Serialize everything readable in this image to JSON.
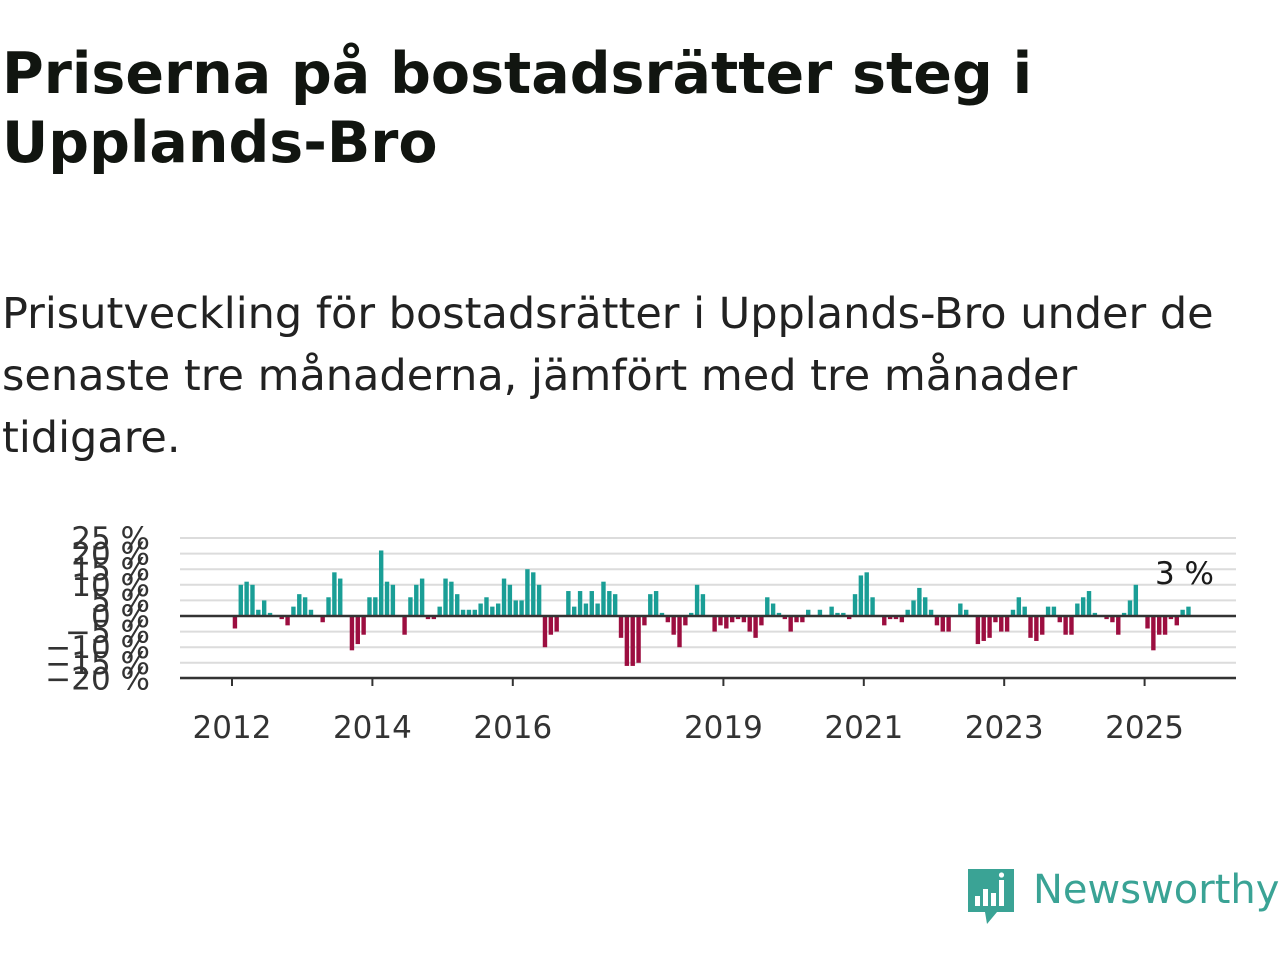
{
  "title": "Priserna på bostadsrätter steg i Upplands-Bro",
  "subtitle": "Prisutveckling för bostadsrätter i Upplands-Bro under de senaste tre månaderna, jämfört med tre månader tidigare.",
  "logo_text": "Newsworthy",
  "colors": {
    "positive": "#1a9e96",
    "negative": "#9c0e40",
    "brand": "#3aa395",
    "grid": "#dcdcdc",
    "axis": "#333333"
  },
  "chart_data": {
    "type": "bar",
    "ylabel": "",
    "xlabel": "",
    "ylim": [
      -20,
      25
    ],
    "y_ticks": [
      -20,
      -15,
      -10,
      -5,
      0,
      5,
      10,
      15,
      20,
      25
    ],
    "y_tick_labels": [
      "−20 %",
      "−15 %",
      "−10 %",
      "−5 %",
      "0 %",
      "5 %",
      "10 %",
      "15 %",
      "20 %",
      "25 %"
    ],
    "x_tick_labels": [
      {
        "label": "2012",
        "year": 2012
      },
      {
        "label": "2014",
        "year": 2014
      },
      {
        "label": "2016",
        "year": 2016
      },
      {
        "label": "2019",
        "year": 2019
      },
      {
        "label": "2021",
        "year": 2021
      },
      {
        "label": "2023",
        "year": 2023
      },
      {
        "label": "2025",
        "year": 2025
      }
    ],
    "start": "2012-01",
    "grid": true,
    "annotation": "3 %",
    "series": [
      {
        "values": [
          -4,
          10,
          11,
          10,
          2,
          5,
          1,
          0,
          -1,
          -3,
          3,
          7,
          6,
          2,
          0,
          -2,
          6,
          14,
          12,
          0,
          -11,
          -9,
          -6,
          6,
          6,
          21,
          11,
          10,
          0,
          -6,
          6,
          10,
          12,
          -1,
          -1,
          3,
          12,
          11,
          7,
          2,
          2,
          2,
          4,
          6,
          3,
          4,
          12,
          10,
          5,
          5,
          15,
          14,
          10,
          -10,
          -6,
          -5,
          0,
          8,
          3,
          8,
          4,
          8,
          4,
          11,
          8,
          7,
          -7,
          -16,
          -16,
          -15,
          -3,
          7,
          8,
          1,
          -2,
          -6,
          -10,
          -3,
          1,
          10,
          7,
          0,
          -5,
          -3,
          -4,
          -2,
          -1,
          -2,
          -5,
          -7,
          -3,
          6,
          4,
          1,
          -1,
          -5,
          -2,
          -2,
          2,
          0,
          2,
          0,
          3,
          1,
          1,
          -1,
          7,
          13,
          14,
          6,
          0,
          -3,
          -1,
          -1,
          -2,
          2,
          5,
          9,
          6,
          2,
          -3,
          -5,
          -5,
          0,
          4,
          2,
          0,
          -9,
          -8,
          -7,
          -2,
          -5,
          -5,
          2,
          6,
          3,
          -7,
          -8,
          -6,
          3,
          3,
          -2,
          -6,
          -6,
          4,
          6,
          8,
          1,
          0,
          -1,
          -2,
          -6,
          1,
          5,
          10,
          0,
          -4,
          -11,
          -6,
          -6,
          -1,
          -3,
          2,
          3
        ]
      }
    ]
  }
}
